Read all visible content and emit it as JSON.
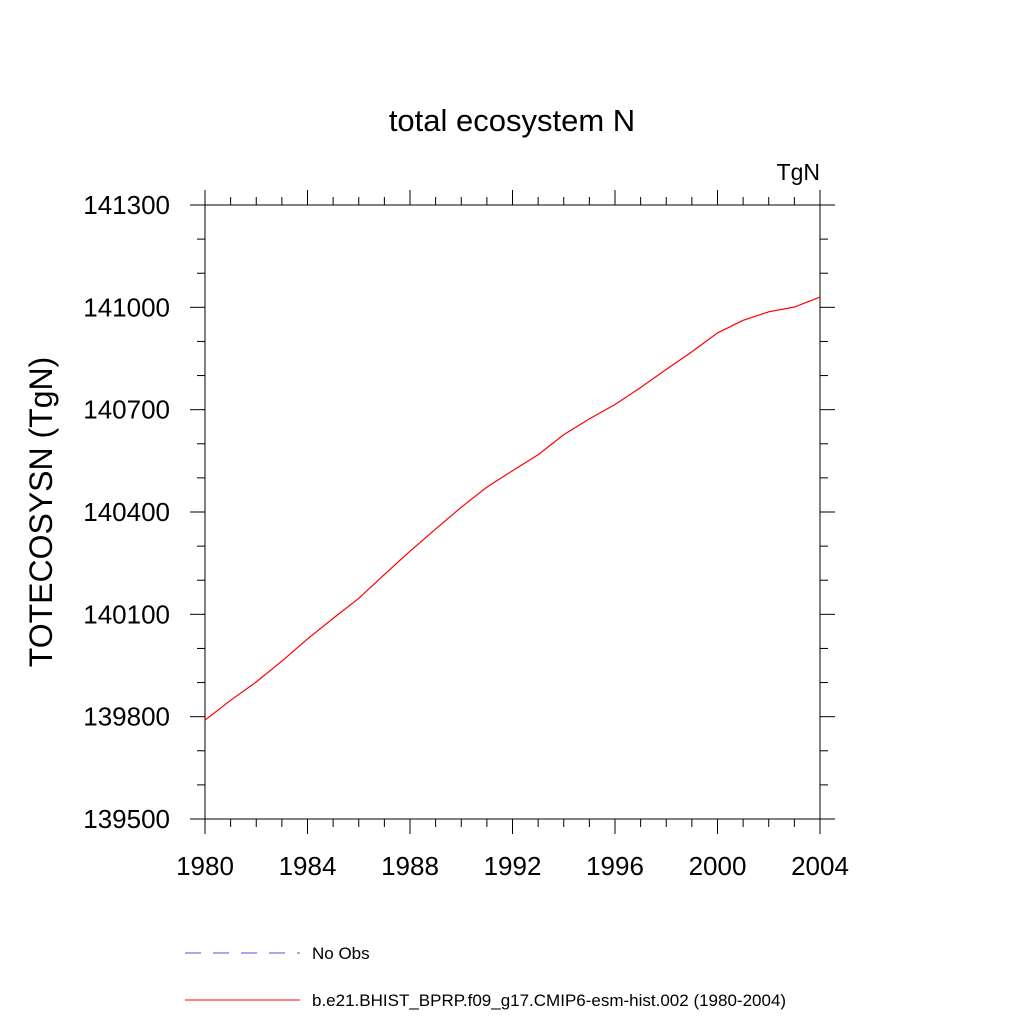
{
  "chart_data": {
    "type": "line",
    "title": "total ecosystem N",
    "units_label": "TgN",
    "ylabel": "TOTECOSYSN  (TgN)",
    "xlabel": "",
    "xlim": [
      1980,
      2004
    ],
    "ylim": [
      139500,
      141300
    ],
    "x_ticks": [
      1980,
      1984,
      1988,
      1992,
      1996,
      2000,
      2004
    ],
    "x_tick_labels": [
      "1980",
      "1984",
      "1988",
      "1992",
      "1996",
      "2000",
      "2004"
    ],
    "y_ticks": [
      139500,
      139800,
      140100,
      140400,
      140700,
      141000,
      141300
    ],
    "y_tick_labels": [
      "139500",
      "139800",
      "140100",
      "140400",
      "140700",
      "141000",
      "141300"
    ],
    "grid": false,
    "series": [
      {
        "name": "b.e21.BHIST_BPRP.f09_g17.CMIP6-esm-hist.002 (1980-2004)",
        "color": "#ff0000",
        "x": [
          1980,
          1981,
          1982,
          1983,
          1984,
          1985,
          1986,
          1987,
          1988,
          1989,
          1990,
          1991,
          1992,
          1993,
          1994,
          1995,
          1996,
          1997,
          1998,
          1999,
          2000,
          2001,
          2002,
          2003,
          2004
        ],
        "y": [
          139790,
          139848,
          139902,
          139963,
          140028,
          140088,
          140147,
          140217,
          140285,
          140350,
          140414,
          140473,
          140521,
          140568,
          140627,
          140673,
          140715,
          140765,
          140818,
          140870,
          140925,
          140962,
          140987,
          141001,
          141030
        ]
      }
    ],
    "legend": {
      "placement": "bottom-left",
      "entries": [
        {
          "label": "No Obs",
          "color": "#5a4fd6",
          "style": "dashed"
        },
        {
          "label": "b.e21.BHIST_BPRP.f09_g17.CMIP6-esm-hist.002 (1980-2004)",
          "color": "#ff0000",
          "style": "solid"
        }
      ]
    }
  }
}
